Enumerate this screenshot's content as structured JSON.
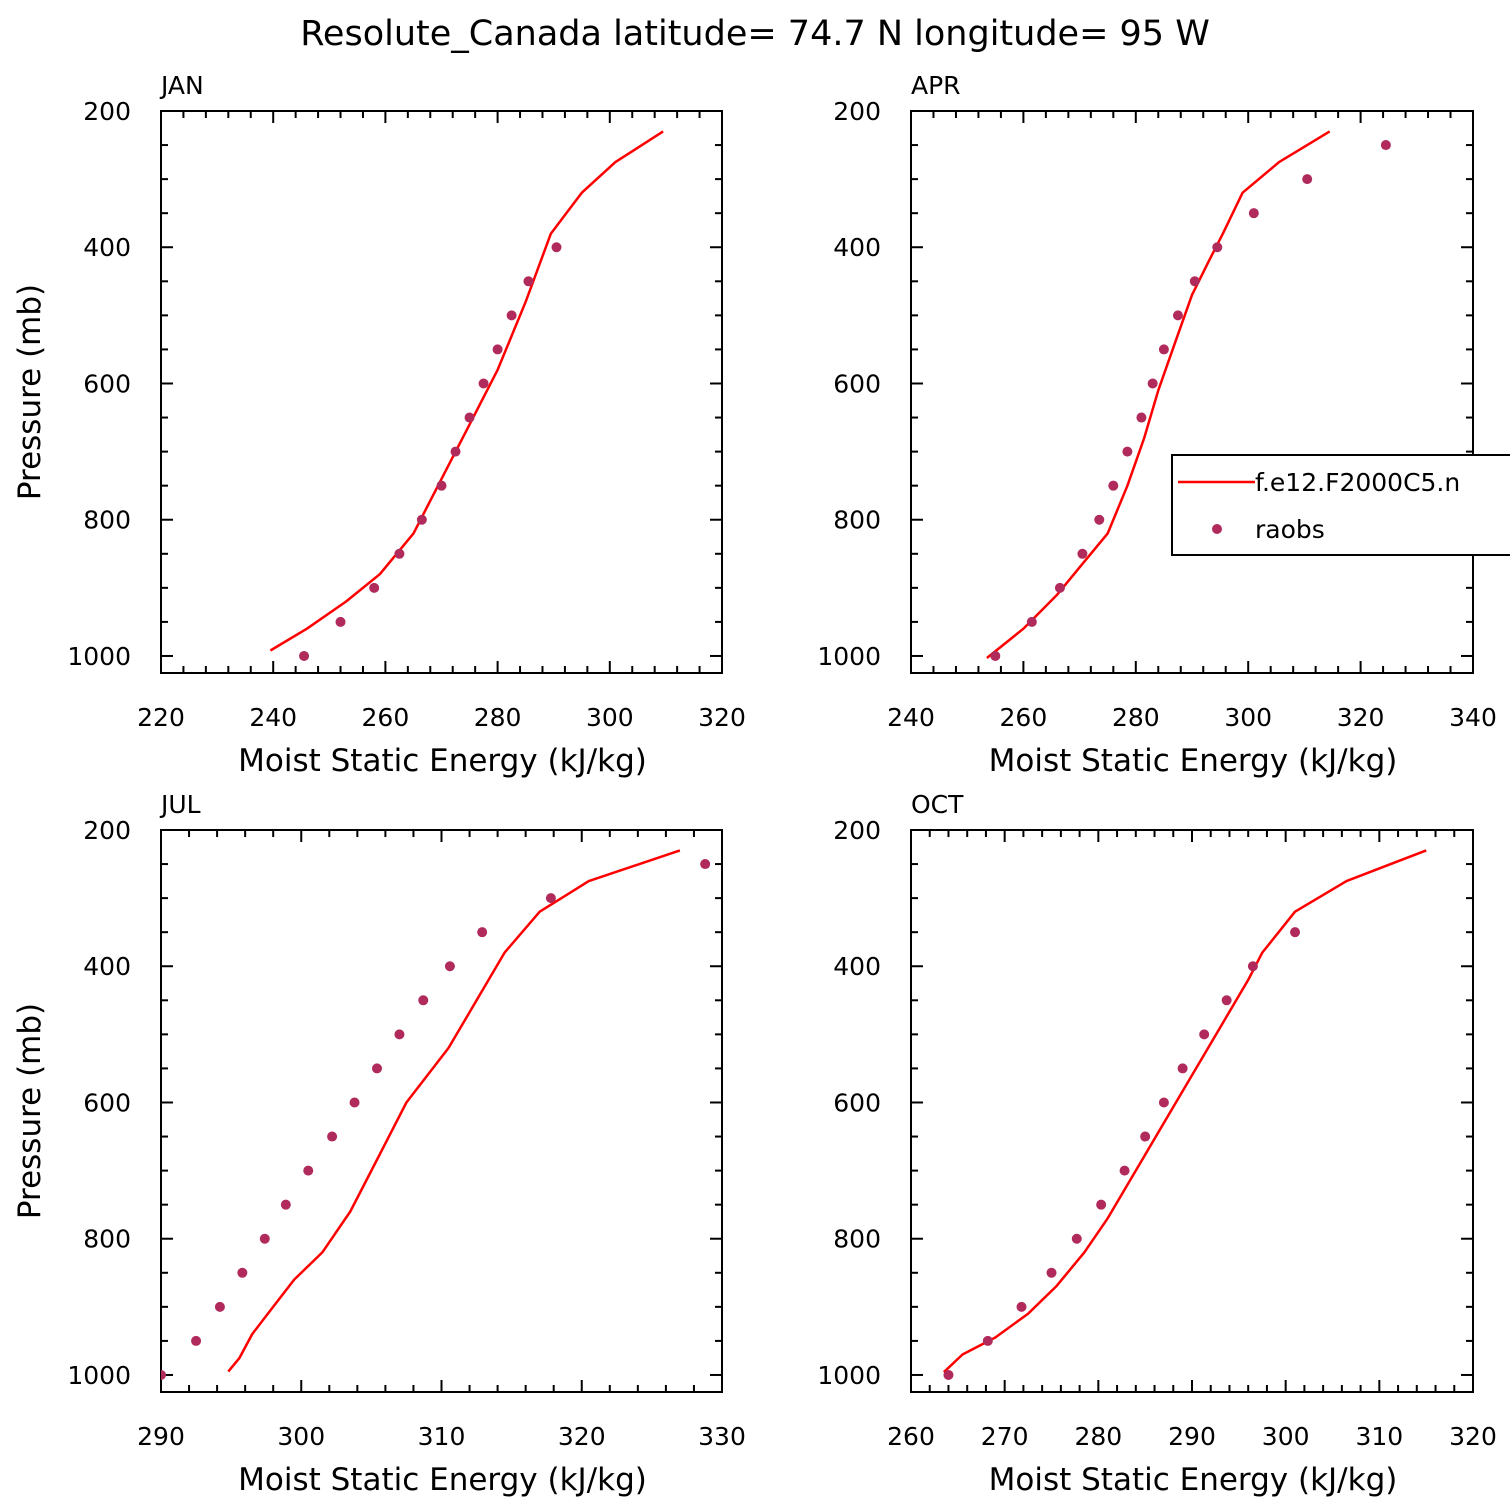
{
  "title": "Resolute_Canada  latitude= 74.7 N longitude= 95 W",
  "colors": {
    "model_line": "#ff0000",
    "obs_marker": "#b02a5c",
    "axes": "#000000"
  },
  "legend": {
    "model_label": "f.e12.F2000C5.n",
    "obs_label": "raobs"
  },
  "chart_data": [
    {
      "type": "line",
      "panel": "JAN",
      "xlabel": "Moist Static Energy (kJ/kg)",
      "ylabel": "Pressure (mb)",
      "xlim": [
        220,
        320
      ],
      "ylim": [
        1025,
        200
      ],
      "xticks": [
        220,
        240,
        260,
        280,
        300,
        320
      ],
      "yticks": [
        200,
        400,
        600,
        800,
        1000
      ],
      "series": [
        {
          "name": "f.e12.F2000C5.n",
          "style": "line",
          "x": [
            239.5,
            246,
            253,
            259,
            265,
            270,
            275,
            280,
            285,
            289.5,
            295,
            301,
            309.5
          ],
          "y": [
            992,
            960,
            920,
            880,
            820,
            740,
            660,
            580,
            480,
            380,
            320,
            275,
            230
          ]
        },
        {
          "name": "raobs",
          "style": "markers",
          "x": [
            245.5,
            252,
            258,
            262.5,
            266.5,
            270,
            272.5,
            275,
            277.5,
            280,
            282.5,
            285.5,
            290.5
          ],
          "y": [
            1000,
            950,
            900,
            850,
            800,
            750,
            700,
            650,
            600,
            550,
            500,
            450,
            400
          ]
        }
      ]
    },
    {
      "type": "line",
      "panel": "APR",
      "xlabel": "Moist Static Energy (kJ/kg)",
      "ylabel": "",
      "xlim": [
        240,
        340
      ],
      "ylim": [
        1025,
        200
      ],
      "xticks": [
        240,
        260,
        280,
        300,
        320,
        340
      ],
      "yticks": [
        200,
        400,
        600,
        800,
        1000
      ],
      "series": [
        {
          "name": "f.e12.F2000C5.n",
          "style": "line",
          "x": [
            253.5,
            260,
            266,
            271,
            275,
            278.5,
            281.5,
            284,
            287,
            290,
            293,
            295.5,
            299,
            305.5,
            314.5
          ],
          "y": [
            1003,
            960,
            910,
            860,
            820,
            750,
            680,
            610,
            540,
            470,
            420,
            380,
            320,
            275,
            230
          ]
        },
        {
          "name": "raobs",
          "style": "markers",
          "x": [
            255,
            261.5,
            266.5,
            270.5,
            273.5,
            276,
            278.5,
            281,
            283,
            285,
            287.5,
            290.5,
            294.5,
            301,
            310.5,
            324.5
          ],
          "y": [
            1000,
            950,
            900,
            850,
            800,
            750,
            700,
            650,
            600,
            550,
            500,
            450,
            400,
            350,
            300,
            250
          ]
        }
      ]
    },
    {
      "type": "line",
      "panel": "JUL",
      "xlabel": "Moist Static Energy (kJ/kg)",
      "ylabel": "Pressure (mb)",
      "xlim": [
        290,
        330
      ],
      "ylim": [
        1025,
        200
      ],
      "xticks": [
        290,
        300,
        310,
        320,
        330
      ],
      "yticks": [
        200,
        400,
        600,
        800,
        1000
      ],
      "series": [
        {
          "name": "f.e12.F2000C5.n",
          "style": "line",
          "x": [
            294.8,
            295.6,
            296.5,
            298,
            299.5,
            301.5,
            303.5,
            305.5,
            307.5,
            310.5,
            312.5,
            314.5,
            317,
            320.5,
            327
          ],
          "y": [
            995,
            975,
            940,
            900,
            860,
            820,
            760,
            680,
            600,
            520,
            450,
            380,
            320,
            275,
            230
          ]
        },
        {
          "name": "raobs",
          "style": "markers",
          "x": [
            290,
            292.5,
            294.2,
            295.8,
            297.4,
            298.9,
            300.5,
            302.2,
            303.8,
            305.4,
            307.0,
            308.7,
            310.6,
            312.9,
            317.8,
            328.8
          ],
          "y": [
            1000,
            950,
            900,
            850,
            800,
            750,
            700,
            650,
            600,
            550,
            500,
            450,
            400,
            350,
            300,
            250
          ]
        }
      ]
    },
    {
      "type": "line",
      "panel": "OCT",
      "xlabel": "Moist Static Energy (kJ/kg)",
      "ylabel": "",
      "xlim": [
        260,
        320
      ],
      "ylim": [
        1025,
        200
      ],
      "xticks": [
        260,
        270,
        280,
        290,
        300,
        310,
        320
      ],
      "yticks": [
        200,
        400,
        600,
        800,
        1000
      ],
      "series": [
        {
          "name": "f.e12.F2000C5.n",
          "style": "line",
          "x": [
            263.5,
            265.5,
            269,
            272.5,
            275.5,
            278.5,
            281,
            284,
            287,
            290,
            293,
            296,
            297.5,
            301,
            306.5,
            315
          ],
          "y": [
            996,
            970,
            945,
            910,
            870,
            820,
            770,
            700,
            630,
            560,
            490,
            420,
            380,
            320,
            275,
            230
          ]
        },
        {
          "name": "raobs",
          "style": "markers",
          "x": [
            264,
            268.2,
            271.8,
            275,
            277.7,
            280.3,
            282.8,
            285,
            287,
            289,
            291.3,
            293.7,
            296.5,
            301
          ],
          "y": [
            1000,
            950,
            900,
            850,
            800,
            750,
            700,
            650,
            600,
            550,
            500,
            450,
            400,
            350
          ]
        }
      ]
    }
  ]
}
